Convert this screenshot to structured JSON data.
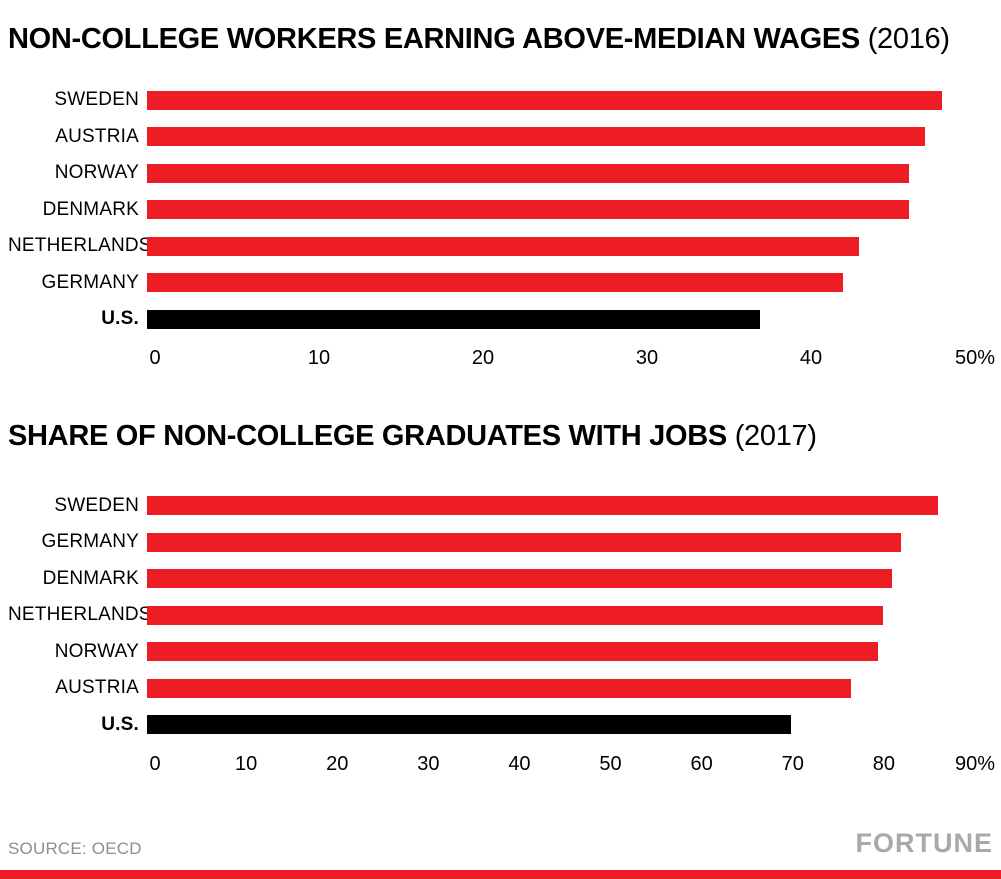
{
  "page": {
    "background": "#ffffff"
  },
  "colors": {
    "bar_red": "#ee1c25",
    "bar_highlight": "#000000",
    "text_black": "#000000",
    "footer_gray": "#8e8e8e",
    "brand_gray": "#a9a9a9",
    "stripe_red": "#ee1c25"
  },
  "chart_data": [
    {
      "type": "bar",
      "orientation": "horizontal",
      "title": "NON-COLLEGE WORKERS EARNING ABOVE-MEDIAN WAGES",
      "year_label": "(2016)",
      "categories": [
        "SWEDEN",
        "AUSTRIA",
        "NORWAY",
        "DENMARK",
        "NETHERLANDS",
        "GERMANY",
        "U.S."
      ],
      "values": [
        48,
        47,
        46,
        46,
        43,
        42,
        37
      ],
      "xlim": [
        0,
        50
      ],
      "tick_values": [
        0,
        10,
        20,
        30,
        40,
        50
      ],
      "tick_labels": [
        "0",
        "10",
        "20",
        "30",
        "40",
        "50%"
      ],
      "highlight_category": "U.S.",
      "grid": false,
      "legend": false
    },
    {
      "type": "bar",
      "orientation": "horizontal",
      "title": "SHARE OF NON-COLLEGE GRADUATES WITH JOBS",
      "year_label": "(2017)",
      "categories": [
        "SWEDEN",
        "GERMANY",
        "DENMARK",
        "NETHERLANDS",
        "NORWAY",
        "AUSTRIA",
        "U.S."
      ],
      "values": [
        86,
        82,
        81,
        80,
        79.5,
        76.5,
        70
      ],
      "xlim": [
        0,
        90
      ],
      "tick_values": [
        0,
        10,
        20,
        30,
        40,
        50,
        60,
        70,
        80,
        90
      ],
      "tick_labels": [
        "0",
        "10",
        "20",
        "30",
        "40",
        "50",
        "60",
        "70",
        "80",
        "90%"
      ],
      "highlight_category": "U.S.",
      "grid": false,
      "legend": false
    }
  ],
  "footer": {
    "source": "SOURCE: OECD",
    "brand": "FORTUNE"
  }
}
